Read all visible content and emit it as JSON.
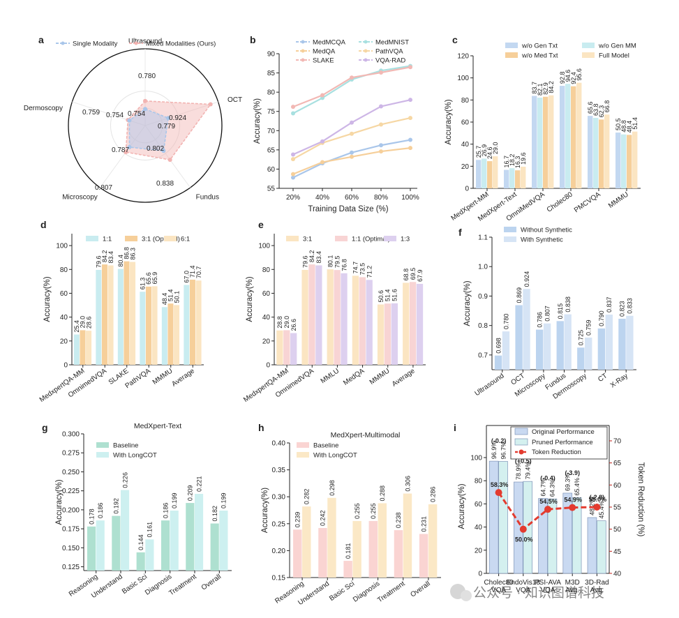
{
  "panels": {
    "a": {
      "label": "a",
      "chart_data": {
        "type": "radar",
        "axes": [
          "Ultrasound",
          "OCT",
          "Fundus",
          "Microscopy",
          "Dermoscopy"
        ],
        "series": [
          {
            "name": "Single Modality",
            "values": [
              0.754,
              0.779,
              0.802,
              0.787,
              0.754
            ],
            "color": "#a9c6ea"
          },
          {
            "name": "Mixed Modalities (Ours)",
            "values": [
              0.78,
              0.924,
              0.838,
              0.807,
              0.759
            ],
            "color": "#f2b4b2"
          }
        ],
        "value_labels": {
          "single": [
            "0.754",
            "0.779",
            "0.802",
            "0.787",
            "0.754"
          ],
          "mixed": [
            "0.780",
            "0.924",
            "0.838",
            "0.807",
            "0.759"
          ]
        }
      }
    },
    "b": {
      "label": "b",
      "chart_data": {
        "type": "line",
        "x": [
          "20%",
          "40%",
          "60%",
          "80%",
          "100%"
        ],
        "xlabel": "Training Data Size (%)",
        "ylabel": "Accuracy(%)",
        "ylim": [
          55,
          90
        ],
        "yticks": [
          "55",
          "60",
          "65",
          "70",
          "75",
          "80",
          "85",
          "90"
        ],
        "series": [
          {
            "name": "MedMCQA",
            "values": [
              57.8,
              61.5,
              64.3,
              66.2,
              67.6
            ],
            "color": "#a9c6ea"
          },
          {
            "name": "MedMNIST",
            "values": [
              74.5,
              78.5,
              83.3,
              85.6,
              86.8
            ],
            "color": "#a8e0e0"
          },
          {
            "name": "MedQA",
            "values": [
              58.7,
              61.8,
              63.2,
              64.6,
              65.5
            ],
            "color": "#f6cf9a"
          },
          {
            "name": "PathVQA",
            "values": [
              62.6,
              66.8,
              69.2,
              71.6,
              73.3
            ],
            "color": "#f6d7a4"
          },
          {
            "name": "SLAKE",
            "values": [
              76.2,
              79.2,
              83.8,
              85.1,
              86.5
            ],
            "color": "#f2b8b4"
          },
          {
            "name": "VQA-RAD",
            "values": [
              63.8,
              67.2,
              72.1,
              76.3,
              78.0
            ],
            "color": "#cdb6e6"
          }
        ]
      }
    },
    "c": {
      "label": "c",
      "chart_data": {
        "type": "bar",
        "categories": [
          "MedXpert-MM",
          "MedXpert-Text",
          "OmniMedVQA",
          "Cholec80",
          "PMCVQA",
          "MMMU"
        ],
        "ylabel": "Accuracy(%)",
        "ylim": [
          0,
          120
        ],
        "yticks": [
          "0",
          "20",
          "40",
          "60",
          "80",
          "100",
          "120"
        ],
        "series": [
          {
            "name": "w/o Gen Txt",
            "values": [
              25.7,
              16.7,
              83.7,
              92.8,
              65.6,
              50.5
            ],
            "labels": [
              "25.7",
              "16.7",
              "83.7",
              "92.8",
              "65.6",
              "50.5"
            ],
            "color": "#c3d8f1"
          },
          {
            "name": "w/o Gen MM",
            "values": [
              26.9,
              18.2,
              82.1,
              94.6,
              63.8,
              48.8
            ],
            "labels": [
              "26.9",
              "18.2",
              "82.1",
              "94.6",
              "63.8",
              "48.8"
            ],
            "color": "#c9ecf0"
          },
          {
            "name": "w/o Med Txt",
            "values": [
              24.6,
              16.3,
              82.9,
              92.4,
              62.3,
              48.4
            ],
            "labels": [
              "24.6",
              "16.3",
              "82.9",
              "92.4",
              "62.3",
              "48.4"
            ],
            "color": "#f6cf9a"
          },
          {
            "name": "Full Model",
            "values": [
              29.0,
              19.6,
              84.2,
              95.6,
              66.8,
              51.4
            ],
            "labels": [
              "29.0",
              "19.6",
              "84.2",
              "95.6",
              "66.8",
              "51.4"
            ],
            "color": "#fbe5c2"
          }
        ]
      }
    },
    "d": {
      "label": "d",
      "chart_data": {
        "type": "bar",
        "categories": [
          "MedxpertQA-MM",
          "OmnimedVQA",
          "SLAKE",
          "PathVQA",
          "MMMU",
          "Average"
        ],
        "ylabel": "Accuracy(%)",
        "ylim": [
          0,
          110
        ],
        "yticks": [
          "0",
          "20",
          "40",
          "60",
          "80",
          "100"
        ],
        "series": [
          {
            "name": "1:1",
            "values": [
              25.4,
              79.6,
              80.4,
              61.3,
              48.4,
              67.0
            ],
            "labels": [
              "25.4",
              "79.6",
              "80.4",
              "61.3",
              "48.4",
              "67.0"
            ],
            "color": "#c9ecf0"
          },
          {
            "name": "3:1 (Optimal)",
            "values": [
              29.0,
              84.2,
              86.8,
              65.6,
              51.4,
              71.4
            ],
            "labels": [
              "29.0",
              "84.2",
              "86.8",
              "65.6",
              "51.4",
              "71.4"
            ],
            "color": "#f6cf9a"
          },
          {
            "name": "6:1",
            "values": [
              28.6,
              83.4,
              86.3,
              65.9,
              50.1,
              70.7
            ],
            "labels": [
              "28.6",
              "83.4",
              "86.3",
              "65.9",
              "50.1",
              "70.7"
            ],
            "color": "#fbe5c2"
          }
        ]
      }
    },
    "e": {
      "label": "e",
      "chart_data": {
        "type": "bar",
        "categories": [
          "MedxpertQA-MM",
          "OmnimedVQA",
          "MMLU",
          "MedQA",
          "MMMU",
          "Average"
        ],
        "ylabel": "Accuracy(%)",
        "ylim": [
          0,
          110
        ],
        "yticks": [
          "0",
          "20",
          "40",
          "60",
          "80",
          "100"
        ],
        "series": [
          {
            "name": "3:1",
            "values": [
              28.8,
              79.6,
              80.1,
              74.7,
              50.6,
              68.8
            ],
            "labels": [
              "28.8",
              "79.6",
              "80.1",
              "74.7",
              "50.6",
              "68.8"
            ],
            "color": "#fbe5c2"
          },
          {
            "name": "1:1 (Optimal)",
            "values": [
              29.0,
              84.2,
              79.5,
              73.5,
              51.4,
              69.5
            ],
            "labels": [
              "29.0",
              "84.2",
              "79.5",
              "73.5",
              "51.4",
              "69.5"
            ],
            "color": "#f8d4d4"
          },
          {
            "name": "1:3",
            "values": [
              26.6,
              83.4,
              76.8,
              71.2,
              51.6,
              67.9
            ],
            "labels": [
              "26.6",
              "83.4",
              "76.8",
              "71.2",
              "51.6",
              "67.9"
            ],
            "color": "#ddd0ef"
          }
        ]
      }
    },
    "f": {
      "label": "f",
      "chart_data": {
        "type": "bar",
        "categories": [
          "Ultrasound",
          "OCT",
          "Microscopy",
          "Fundus",
          "Dermoscopy",
          "CT",
          "X-Ray"
        ],
        "ylabel": "Accuracy(%)",
        "ylim": [
          0.65,
          1.1
        ],
        "yticks": [
          "0.7",
          "0.8",
          "0.9",
          "1.0",
          "1.1"
        ],
        "series": [
          {
            "name": "Without Synthetic",
            "values": [
              0.698,
              0.869,
              0.786,
              0.815,
              0.725,
              0.79,
              0.823
            ],
            "labels": [
              "0.698",
              "0.869",
              "0.786",
              "0.815",
              "0.725",
              "0.790",
              "0.823"
            ],
            "color": "#bcd4ef"
          },
          {
            "name": "With Synthetic",
            "values": [
              0.78,
              0.924,
              0.807,
              0.838,
              0.759,
              0.837,
              0.833
            ],
            "labels": [
              "0.780",
              "0.924",
              "0.807",
              "0.838",
              "0.759",
              "0.837",
              "0.833"
            ],
            "color": "#d6e4f5"
          }
        ]
      }
    },
    "g": {
      "label": "g",
      "chart_data": {
        "type": "bar",
        "title": "MedXpert-Text",
        "categories": [
          "Reasoning",
          "Understand",
          "Basic Sci",
          "Diagnosis",
          "Treatment",
          "Overall"
        ],
        "ylabel": "Accuracy(%)",
        "ylim": [
          0.12,
          0.3
        ],
        "yticks": [
          "0.125",
          "0.150",
          "0.175",
          "0.200",
          "0.225",
          "0.250",
          "0.275",
          "0.300"
        ],
        "series": [
          {
            "name": "Baseline",
            "values": [
              0.178,
              0.192,
              0.144,
              0.186,
              0.209,
              0.182
            ],
            "labels": [
              "0.178",
              "0.192",
              "0.144",
              "0.186",
              "0.209",
              "0.182"
            ],
            "color": "#aee0d0"
          },
          {
            "name": "With LongCOT",
            "values": [
              0.186,
              0.226,
              0.161,
              0.199,
              0.221,
              0.199
            ],
            "labels": [
              "0.186",
              "0.226",
              "0.161",
              "0.199",
              "0.221",
              "0.199"
            ],
            "color": "#cdf0f0"
          }
        ]
      }
    },
    "h": {
      "label": "h",
      "chart_data": {
        "type": "bar",
        "title": "MedXpert-Multimodal",
        "categories": [
          "Reasoning",
          "Understand",
          "Basic Sci",
          "Diagnosis",
          "Treatment",
          "Overall"
        ],
        "ylabel": "Accuracy(%)",
        "ylim": [
          0.15,
          0.4
        ],
        "yticks": [
          "0.15",
          "0.20",
          "0.25",
          "0.30",
          "0.35",
          "0.40"
        ],
        "series": [
          {
            "name": "Baseline",
            "values": [
              0.239,
              0.242,
              0.181,
              0.255,
              0.238,
              0.231
            ],
            "labels": [
              "0.239",
              "0.242",
              "0.181",
              "0.255",
              "0.238",
              "0.231"
            ],
            "color": "#fad4d2"
          },
          {
            "name": "With LongCOT",
            "values": [
              0.282,
              0.298,
              0.255,
              0.288,
              0.306,
              0.286
            ],
            "labels": [
              "0.282",
              "0.298",
              "0.255",
              "0.288",
              "0.306",
              "0.286"
            ],
            "color": "#fbe8c6"
          }
        ]
      }
    },
    "i": {
      "label": "i",
      "chart_data": {
        "type": "bar+line",
        "categories": [
          "Cholec80\nVQA",
          "EndoVis18\nVQA",
          "PSI-AVA\nVQA",
          "M3D\nAvg.",
          "3D-Rad\nAvg."
        ],
        "ylabel": "Accuracy(%)",
        "y2label": "Token Reduction (%)",
        "ylim": [
          0,
          100
        ],
        "yticks": [
          "0",
          "20",
          "40",
          "60",
          "80",
          "100"
        ],
        "y2lim": [
          40,
          70
        ],
        "y2ticks": [
          "40",
          "45",
          "50",
          "55",
          "60",
          "65",
          "70"
        ],
        "series": [
          {
            "name": "Original Performance",
            "values": [
              96.9,
              78.9,
              64.7,
              69.3,
              48.2
            ],
            "labels": [
              "96.9%",
              "78.9%",
              "64.7%",
              "69.3%",
              "48.2%"
            ],
            "color": "#c9d9f1"
          },
          {
            "name": "Pruned Performance",
            "values": [
              96.7,
              79.4,
              64.3,
              65.4,
              45.4
            ],
            "labels": [
              "96.7%",
              "79.4%",
              "64.3%",
              "65.4%",
              "45.4%"
            ],
            "color": "#d4f0ef"
          },
          {
            "name": "Token Reduction",
            "values": [
              58.3,
              50.0,
              54.5,
              54.9,
              55.0
            ],
            "labels": [
              "58.3%",
              "50.0%",
              "54.5%",
              "54.9%",
              "55.0%"
            ],
            "color": "#e33b2f"
          }
        ],
        "delta_labels": [
          "(-0.2)",
          "(+0.5)",
          "(-0.4)",
          "(-3.9)",
          "(-2.8)"
        ],
        "delta_colors": [
          "#c0211a",
          "#2e9a3a",
          "#c0211a",
          "#c0211a",
          "#c0211a"
        ]
      }
    }
  },
  "watermark": "公众号 · 知识图谱科技"
}
